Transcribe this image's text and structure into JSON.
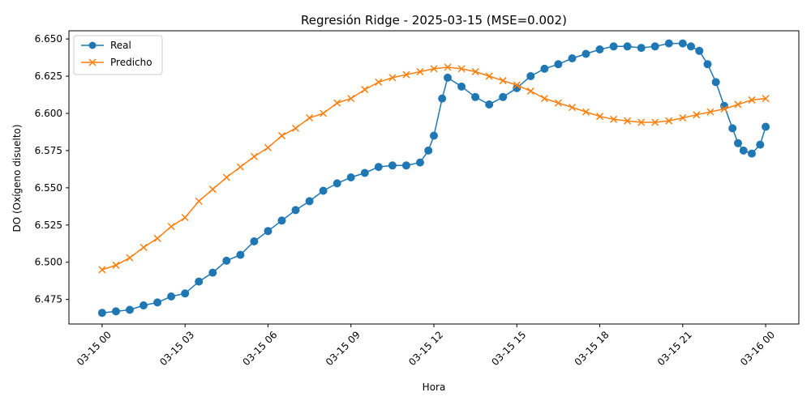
{
  "chart_data": {
    "type": "line",
    "title": "Regresión Ridge - 2025-03-15 (MSE=0.002)",
    "xlabel": "Hora",
    "ylabel": "DO (Oxígeno disuelto)",
    "xlim": [
      -1.2,
      25.2
    ],
    "ylim": [
      6.4585,
      6.6555
    ],
    "x_ticks": [
      0,
      3,
      6,
      9,
      12,
      15,
      18,
      21,
      24
    ],
    "x_tick_labels": [
      "03-15 00",
      "03-15 03",
      "03-15 06",
      "03-15 09",
      "03-15 12",
      "03-15 15",
      "03-15 18",
      "03-15 21",
      "03-16 00"
    ],
    "y_ticks": [
      6.475,
      6.5,
      6.525,
      6.55,
      6.575,
      6.6,
      6.625,
      6.65
    ],
    "y_tick_labels": [
      "6.475",
      "6.500",
      "6.525",
      "6.550",
      "6.575",
      "6.600",
      "6.625",
      "6.650"
    ],
    "grid": false,
    "legend_position": "top-left",
    "colors": {
      "real": "#1f77b4",
      "predicho": "#ff7f0e"
    },
    "series": [
      {
        "name": "Real",
        "marker": "circle",
        "x": [
          0,
          0.5,
          1,
          1.5,
          2,
          2.5,
          3,
          3.5,
          4,
          4.5,
          5,
          5.5,
          6,
          6.5,
          7,
          7.5,
          8,
          8.5,
          9,
          9.5,
          10,
          10.5,
          11,
          11.5,
          11.8,
          12,
          12.3,
          12.5,
          13,
          13.5,
          14,
          14.5,
          15,
          15.5,
          16,
          16.5,
          17,
          17.5,
          18,
          18.5,
          19,
          19.5,
          20,
          20.5,
          21,
          21.3,
          21.6,
          21.9,
          22.2,
          22.5,
          22.8,
          23,
          23.2,
          23.5,
          23.8,
          24
        ],
        "y": [
          6.466,
          6.467,
          6.468,
          6.471,
          6.473,
          6.477,
          6.479,
          6.487,
          6.493,
          6.501,
          6.505,
          6.514,
          6.521,
          6.528,
          6.535,
          6.541,
          6.548,
          6.553,
          6.557,
          6.56,
          6.564,
          6.565,
          6.565,
          6.567,
          6.575,
          6.585,
          6.61,
          6.624,
          6.618,
          6.611,
          6.606,
          6.611,
          6.617,
          6.625,
          6.63,
          6.633,
          6.637,
          6.64,
          6.643,
          6.645,
          6.645,
          6.644,
          6.645,
          6.647,
          6.647,
          6.645,
          6.642,
          6.633,
          6.621,
          6.605,
          6.59,
          6.58,
          6.575,
          6.573,
          6.579,
          6.591
        ]
      },
      {
        "name": "Predicho",
        "marker": "x",
        "x": [
          0,
          0.5,
          1,
          1.5,
          2,
          2.5,
          3,
          3.5,
          4,
          4.5,
          5,
          5.5,
          6,
          6.5,
          7,
          7.5,
          8,
          8.5,
          9,
          9.5,
          10,
          10.5,
          11,
          11.5,
          12,
          12.5,
          13,
          13.5,
          14,
          14.5,
          15,
          15.5,
          16,
          16.5,
          17,
          17.5,
          18,
          18.5,
          19,
          19.5,
          20,
          20.5,
          21,
          21.5,
          22,
          22.5,
          23,
          23.5,
          24
        ],
        "y": [
          6.495,
          6.498,
          6.503,
          6.51,
          6.516,
          6.524,
          6.53,
          6.541,
          6.549,
          6.557,
          6.564,
          6.571,
          6.577,
          6.585,
          6.59,
          6.597,
          6.6,
          6.607,
          6.61,
          6.616,
          6.621,
          6.624,
          6.626,
          6.628,
          6.63,
          6.631,
          6.63,
          6.628,
          6.625,
          6.622,
          6.619,
          6.615,
          6.61,
          6.607,
          6.604,
          6.601,
          6.598,
          6.596,
          6.595,
          6.594,
          6.594,
          6.595,
          6.597,
          6.599,
          6.601,
          6.603,
          6.606,
          6.609,
          6.61
        ]
      }
    ]
  }
}
